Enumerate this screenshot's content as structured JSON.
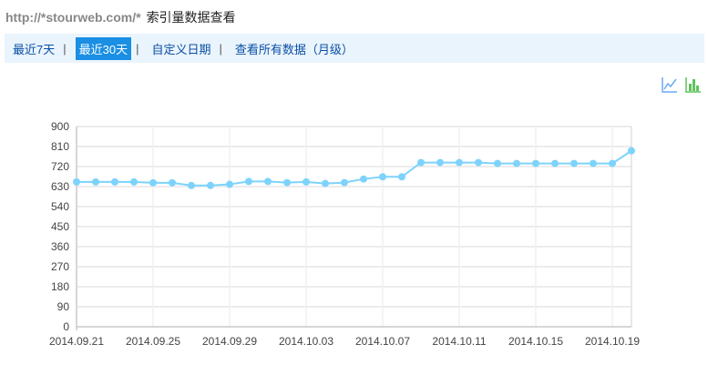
{
  "header": {
    "site": "http://*stourweb.com/*",
    "title": "索引量数据查看"
  },
  "nav": {
    "items": [
      {
        "label": "最近7天",
        "active": false
      },
      {
        "label": "最近30天",
        "active": true
      },
      {
        "label": "自定义日期",
        "active": false
      },
      {
        "label": "查看所有数据（月级）",
        "active": false
      }
    ],
    "separator": "|"
  },
  "toolbar": {
    "icons": [
      "line-chart-icon",
      "bar-chart-icon"
    ]
  },
  "colors": {
    "series": "#7dd3fb",
    "active_tab": "#1a8fe3",
    "nav_bg": "#eaf4fc",
    "line_icon": "#6aaaf5",
    "bar_icon": "#5cc45c"
  },
  "chart_data": {
    "type": "line",
    "x": [
      "2014.09.21",
      "2014.09.22",
      "2014.09.23",
      "2014.09.24",
      "2014.09.25",
      "2014.09.26",
      "2014.09.27",
      "2014.09.28",
      "2014.09.29",
      "2014.09.30",
      "2014.10.01",
      "2014.10.02",
      "2014.10.03",
      "2014.10.04",
      "2014.10.05",
      "2014.10.06",
      "2014.10.07",
      "2014.10.08",
      "2014.10.09",
      "2014.10.10",
      "2014.10.11",
      "2014.10.12",
      "2014.10.13",
      "2014.10.14",
      "2014.10.15",
      "2014.10.16",
      "2014.10.17",
      "2014.10.18",
      "2014.10.19",
      "2014.10.20"
    ],
    "values": [
      651,
      651,
      651,
      651,
      647,
      647,
      635,
      635,
      640,
      653,
      653,
      648,
      651,
      644,
      648,
      664,
      674,
      674,
      738,
      738,
      738,
      738,
      734,
      734,
      734,
      734,
      734,
      734,
      734,
      791
    ],
    "xticks": [
      "2014.09.21",
      "2014.09.25",
      "2014.09.29",
      "2014.10.03",
      "2014.10.07",
      "2014.10.11",
      "2014.10.15",
      "2014.10.19"
    ],
    "yticks": [
      0,
      90,
      180,
      270,
      360,
      450,
      540,
      630,
      720,
      810,
      900
    ],
    "ylim": [
      0,
      900
    ],
    "grid": true
  }
}
